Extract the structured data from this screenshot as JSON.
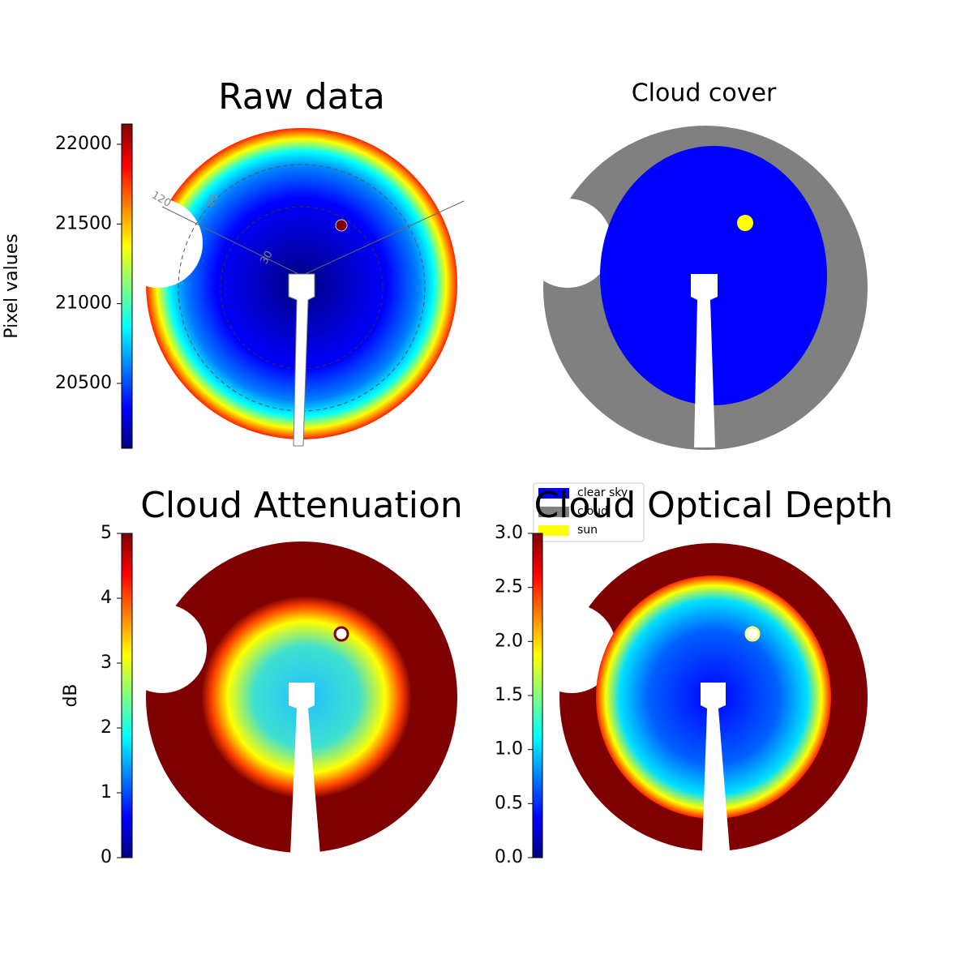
{
  "chart_data": [
    {
      "type": "image",
      "title": "Raw data",
      "ylabel": "Pixel values",
      "ylim": [
        20093,
        22127
      ],
      "yticks": [
        20500,
        21000,
        21500,
        22000
      ],
      "annotations": [
        "120",
        "60",
        "30"
      ]
    },
    {
      "type": "image",
      "title": "Cloud cover",
      "legend": "lower left",
      "series": [
        {
          "name": "clear sky",
          "color": "#0000ff"
        },
        {
          "name": "cloud",
          "color": "#808080"
        },
        {
          "name": "sun",
          "color": "#ffff00"
        }
      ]
    },
    {
      "type": "image",
      "title": "Cloud Attenuation",
      "ylabel": "dB",
      "ylim": [
        0,
        5
      ],
      "yticks": [
        0,
        1,
        2,
        3,
        4,
        5
      ]
    },
    {
      "type": "image",
      "title": "Cloud Optical Depth",
      "ylim": [
        0,
        3
      ],
      "yticks": [
        {
          "value": 0,
          "label": "0.0"
        },
        0.5,
        {
          "value": 1,
          "label": "1.0"
        },
        1.5,
        {
          "value": 2,
          "label": "2.0"
        },
        2.5,
        {
          "value": 3,
          "label": "3.0"
        }
      ]
    }
  ]
}
